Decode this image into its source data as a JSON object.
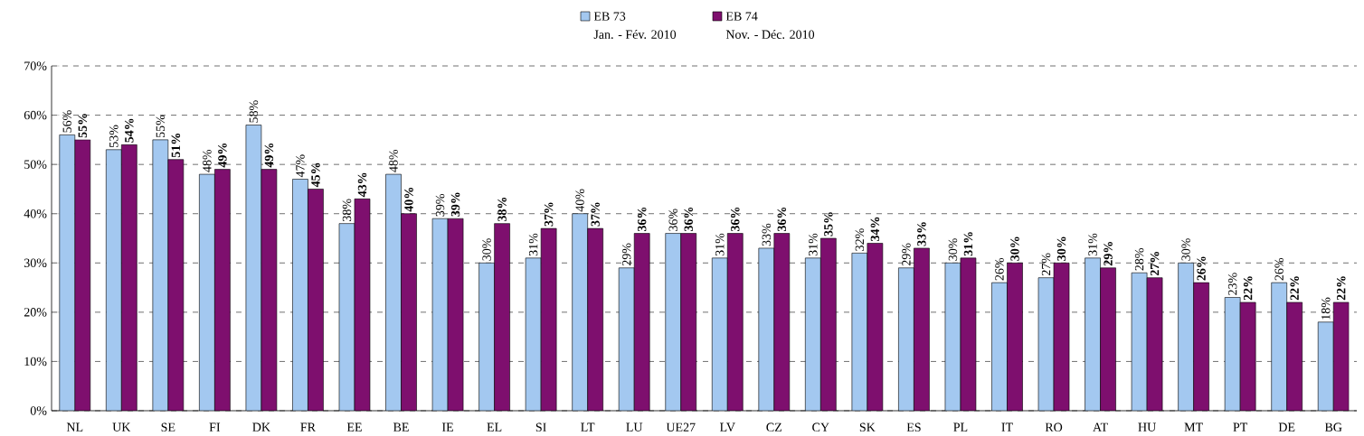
{
  "chart_data": {
    "type": "bar",
    "categories": [
      "NL",
      "UK",
      "SE",
      "FI",
      "DK",
      "FR",
      "EE",
      "BE",
      "IE",
      "EL",
      "SI",
      "LT",
      "LU",
      "UE27",
      "LV",
      "CZ",
      "CY",
      "SK",
      "ES",
      "PL",
      "IT",
      "RO",
      "AT",
      "HU",
      "MT",
      "PT",
      "DE",
      "BG"
    ],
    "series": [
      {
        "name": "EB 73",
        "color": "#a3c8f0",
        "values": [
          56,
          53,
          55,
          48,
          58,
          47,
          38,
          48,
          39,
          30,
          31,
          40,
          29,
          36,
          31,
          33,
          31,
          32,
          29,
          30,
          26,
          27,
          31,
          28,
          30,
          23,
          26,
          18
        ],
        "value_labels": [
          "56%",
          "53%",
          "55%",
          "48%",
          "58%",
          "47%",
          "38%",
          "48%",
          "39%",
          "30%",
          "31%",
          "40%",
          "29%",
          "36%",
          "31%",
          "33%",
          "31%",
          "32%",
          "29%",
          "30%",
          "26%",
          "27%",
          "31%",
          "28%",
          "30%",
          "23%",
          "26%",
          "18%"
        ]
      },
      {
        "name": "EB 74",
        "color": "#7e0f6e",
        "values": [
          55,
          54,
          51,
          49,
          49,
          45,
          43,
          40,
          39,
          38,
          37,
          37,
          36,
          36,
          36,
          36,
          35,
          34,
          33,
          31,
          30,
          30,
          29,
          27,
          26,
          22,
          22,
          22
        ],
        "value_labels": [
          "55%",
          "54%",
          "51%",
          "49%",
          "49%",
          "45%",
          "43%",
          "40%",
          "39%",
          "38%",
          "37%",
          "37%",
          "36%",
          "36%",
          "36%",
          "36%",
          "35%",
          "34%",
          "33%",
          "31%",
          "30%",
          "30%",
          "29%",
          "27%",
          "26%",
          "22%",
          "22%",
          "22%"
        ]
      }
    ],
    "annotations": [
      "Jan. - Fév. 2010",
      "Nov. - Déc. 2010"
    ],
    "ylim": [
      0,
      70
    ],
    "yticks": [
      {
        "value": 0,
        "label": "0%"
      },
      {
        "value": 10,
        "label": "10%"
      },
      {
        "value": 20,
        "label": "20%"
      },
      {
        "value": 30,
        "label": "30%"
      },
      {
        "value": 40,
        "label": "40%"
      },
      {
        "value": 50,
        "label": "50%"
      },
      {
        "value": 60,
        "label": "60%"
      },
      {
        "value": 70,
        "label": "70%"
      }
    ],
    "grid": "y",
    "legend": "top"
  }
}
